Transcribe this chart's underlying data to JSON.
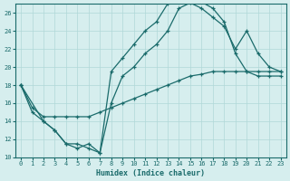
{
  "xlabel": "Humidex (Indice chaleur)",
  "bg_color": "#d6eeee",
  "line_color": "#1a6b6b",
  "grid_color": "#b0d8d8",
  "xlim": [
    -0.5,
    23.5
  ],
  "ylim": [
    10,
    27
  ],
  "xticks": [
    0,
    1,
    2,
    3,
    4,
    5,
    6,
    7,
    8,
    9,
    10,
    11,
    12,
    13,
    14,
    15,
    16,
    17,
    18,
    19,
    20,
    21,
    22,
    23
  ],
  "yticks": [
    10,
    12,
    14,
    16,
    18,
    20,
    22,
    24,
    26
  ],
  "line1_x": [
    0,
    1,
    2,
    3,
    4,
    5,
    6,
    7,
    8,
    9,
    10,
    11,
    12,
    13,
    14,
    15,
    16,
    17,
    18,
    19,
    20,
    21,
    22,
    23
  ],
  "line1_y": [
    18,
    15,
    14,
    13,
    11.5,
    11.5,
    11,
    10.5,
    19.5,
    21,
    22.5,
    24,
    25,
    27,
    27.2,
    27.3,
    27.2,
    26.5,
    25,
    21.5,
    19.5,
    19,
    19,
    19
  ],
  "line2_x": [
    0,
    2,
    3,
    4,
    5,
    6,
    7,
    8,
    9,
    10,
    11,
    12,
    13,
    14,
    15,
    16,
    17,
    18,
    19,
    20,
    21,
    22,
    23
  ],
  "line2_y": [
    18,
    14,
    13,
    11.5,
    11,
    11.5,
    10.5,
    16,
    19,
    20,
    21.5,
    22.5,
    24,
    26.5,
    27.1,
    26.5,
    25.5,
    24.5,
    22,
    24,
    21.5,
    20,
    19.5
  ],
  "line3_x": [
    0,
    1,
    2,
    3,
    4,
    5,
    6,
    7,
    8,
    9,
    10,
    11,
    12,
    13,
    14,
    15,
    16,
    17,
    18,
    19,
    20,
    21,
    22,
    23
  ],
  "line3_y": [
    18,
    15.5,
    14.5,
    14.5,
    14.5,
    14.5,
    14.5,
    15,
    15.5,
    16,
    16.5,
    17,
    17.5,
    18,
    18.5,
    19,
    19.2,
    19.5,
    19.5,
    19.5,
    19.5,
    19.5,
    19.5,
    19.5
  ]
}
